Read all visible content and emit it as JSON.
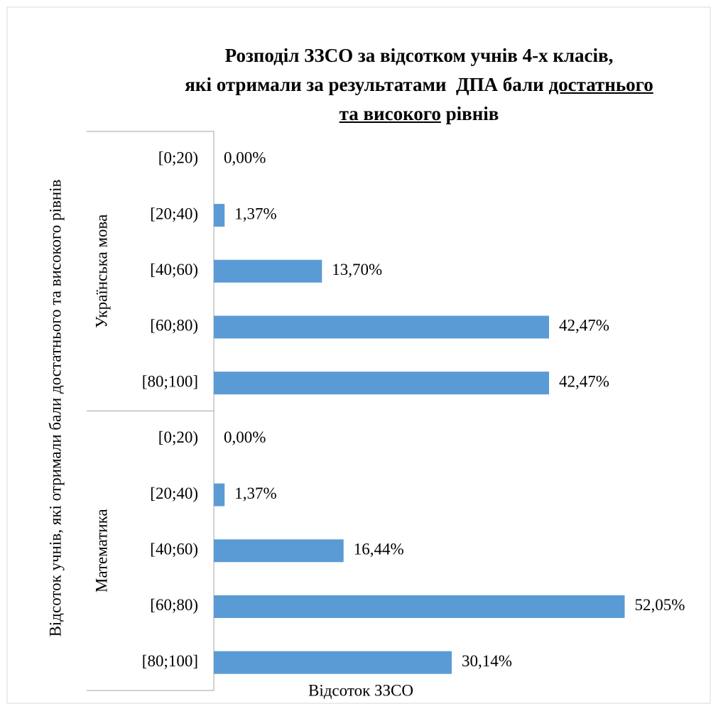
{
  "chart_data": {
    "type": "bar",
    "orientation": "horizontal",
    "title": [
      [
        {
          "text": "Розподіл ЗЗСО за відсотком учнів 4-х класів,",
          "underline": false
        }
      ],
      [
        {
          "text": "які отримали за результатами  ДПА бали ",
          "underline": false
        },
        {
          "text": "достатнього",
          "underline": true
        }
      ],
      [
        {
          "text": "та високого",
          "underline": true
        },
        {
          "text": " рівнів",
          "underline": false
        }
      ]
    ],
    "x_label": "Відсоток ЗЗСО",
    "y_label": "Відсоток учнів, які отримали бали достатнього та високого рівнів",
    "color": "#5b9bd5",
    "xlim": [
      0,
      60
    ],
    "groups": [
      {
        "name": "Українська мова",
        "categories": [
          "[0;20)",
          "[20;40)",
          "[40;60)",
          "[60;80)",
          "[80;100]"
        ],
        "values": [
          0,
          1.37,
          13.7,
          42.47,
          42.47
        ],
        "value_labels": [
          "0,00%",
          "1,37%",
          "13,70%",
          "42,47%",
          "42,47%"
        ]
      },
      {
        "name": "Математика",
        "categories": [
          "[0;20)",
          "[20;40)",
          "[40;60)",
          "[60;80)",
          "[80;100]"
        ],
        "values": [
          0,
          1.37,
          16.44,
          52.05,
          30.14
        ],
        "value_labels": [
          "0,00%",
          "1,37%",
          "16,44%",
          "52,05%",
          "30,14%"
        ]
      }
    ]
  }
}
